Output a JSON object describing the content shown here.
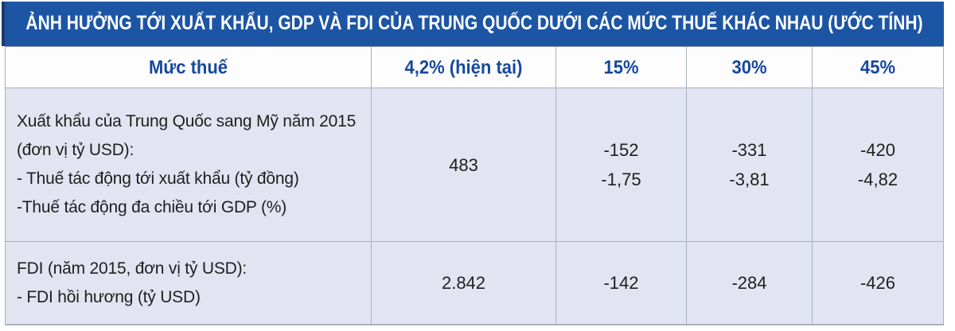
{
  "chart_data": {
    "type": "table",
    "title": "ẢNH HƯỞNG TỚI XUẤT KHẨU, GDP VÀ FDI CỦA TRUNG QUỐC DƯỚI CÁC MỨC THUẾ KHÁC NHAU (ƯỚC TÍNH)",
    "columns": [
      "Mức thuế",
      "4,2% (hiện tại)",
      "15%",
      "30%",
      "45%"
    ],
    "rows": [
      {
        "label_lines": [
          "Xuất khẩu của Trung Quốc sang Mỹ năm 2015",
          "(đơn vị tỷ USD):",
          "- Thuế tác động tới xuất khẩu (tỷ đồng)",
          "-Thuế tác động đa chiều tới GDP (%)"
        ],
        "values": [
          [
            "483"
          ],
          [
            "-152",
            "-1,75"
          ],
          [
            "-331",
            "-3,81"
          ],
          [
            "-420",
            "-4,82"
          ]
        ]
      },
      {
        "label_lines": [
          "FDI (năm 2015, đơn vị tỷ USD):",
          "- FDI hồi hương (tỷ USD)"
        ],
        "values": [
          [
            "2.842"
          ],
          [
            "-142"
          ],
          [
            "-284"
          ],
          [
            "-426"
          ]
        ]
      }
    ]
  },
  "colors": {
    "band_bg": "#1c55a4",
    "band_text": "#ffffff",
    "header_text": "#17489c",
    "row_bg": "#e2e5f1",
    "border": "#a9afbf",
    "body_text": "#1f1f1f"
  }
}
